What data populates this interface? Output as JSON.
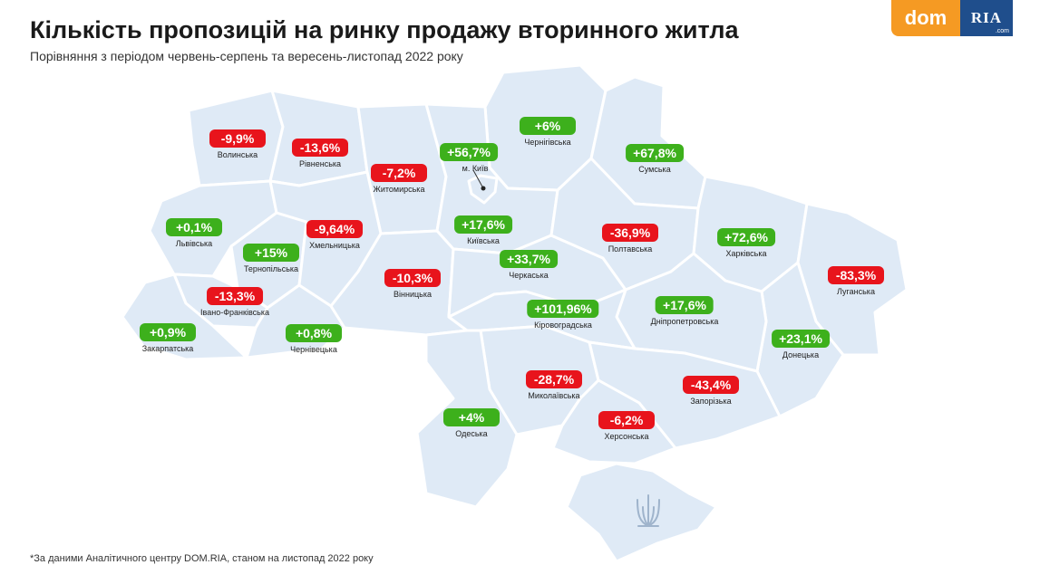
{
  "header": {
    "title": "Кількість пропозицій на ринку продажу вторинного житла",
    "subtitle": "Порівняння з періодом червень-серпень та вересень-листопад 2022 року"
  },
  "logo": {
    "dom": "dom",
    "ria": "RIA",
    "com": ".com"
  },
  "colors": {
    "positive": "#3db01c",
    "negative": "#e8141c",
    "map_fill": "#dfeaf6",
    "logo_orange": "#f59a23",
    "logo_blue": "#1f4e8c"
  },
  "kyiv_city_name": "м. Київ",
  "regions": [
    {
      "name": "Волинська",
      "value": "-9,9%",
      "change": -9.9
    },
    {
      "name": "Рівненська",
      "value": "-13,6%",
      "change": -13.6
    },
    {
      "name": "Житомирська",
      "value": "-7,2%",
      "change": -7.2
    },
    {
      "name": "",
      "value": "+56,7%",
      "change": 56.7
    },
    {
      "name": "Чернігівська",
      "value": "+6%",
      "change": 6
    },
    {
      "name": "Сумська",
      "value": "+67,8%",
      "change": 67.8
    },
    {
      "name": "Львівська",
      "value": "+0,1%",
      "change": 0.1
    },
    {
      "name": "Хмельницька",
      "value": "-9,64%",
      "change": -9.64
    },
    {
      "name": "Тернопільська",
      "value": "+15%",
      "change": 15
    },
    {
      "name": "Київська",
      "value": "+17,6%",
      "change": 17.6
    },
    {
      "name": "Полтавська",
      "value": "-36,9%",
      "change": -36.9
    },
    {
      "name": "Харківська",
      "value": "+72,6%",
      "change": 72.6
    },
    {
      "name": "Черкаська",
      "value": "+33,7%",
      "change": 33.7
    },
    {
      "name": "Вінницька",
      "value": "-10,3%",
      "change": -10.3
    },
    {
      "name": "Луганська",
      "value": "-83,3%",
      "change": -83.3
    },
    {
      "name": "Івано-Франківська",
      "value": "-13,3%",
      "change": -13.3
    },
    {
      "name": "Кіровоградська",
      "value": "+101,96%",
      "change": 101.96
    },
    {
      "name": "Дніпропетровська",
      "value": "+17,6%",
      "change": 17.6
    },
    {
      "name": "Закарпатська",
      "value": "+0,9%",
      "change": 0.9
    },
    {
      "name": "Чернівецька",
      "value": "+0,8%",
      "change": 0.8
    },
    {
      "name": "Донецька",
      "value": "+23,1%",
      "change": 23.1
    },
    {
      "name": "Миколаївська",
      "value": "-28,7%",
      "change": -28.7
    },
    {
      "name": "Запорізька",
      "value": "-43,4%",
      "change": -43.4
    },
    {
      "name": "Одеська",
      "value": "+4%",
      "change": 4
    },
    {
      "name": "Херсонська",
      "value": "-6,2%",
      "change": -6.2
    }
  ],
  "footnote": "*За даними Аналітичного центру DOM.RIA, станом на листопад 2022 року"
}
